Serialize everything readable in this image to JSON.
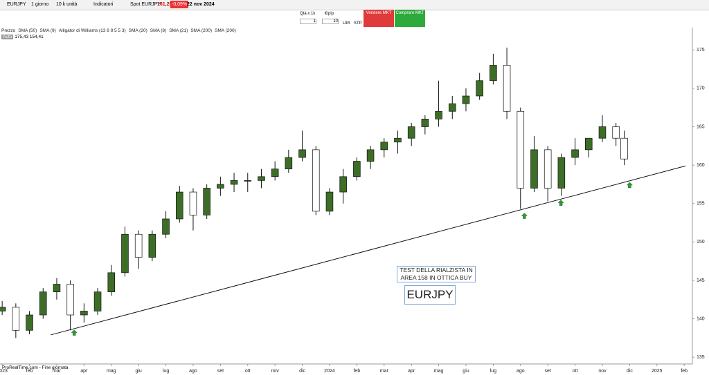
{
  "toolbar": {
    "symbol": "EURJPY",
    "period": "1 giorno",
    "size": "10 k unità",
    "indicators": "Indicatori",
    "spot": "Spot EURJPY",
    "price": "161,25",
    "change": "-0,09%",
    "date": "22 nov 2024"
  },
  "trade_panel": {
    "qty_label": "Qtà x 1k",
    "qty": "1",
    "pip_label": "€/pip",
    "pip": "10",
    "lim": "LIM",
    "stp": "STP",
    "sell": "Vendere MKT",
    "buy": "Comprare MKT"
  },
  "legend": [
    "Prezzo",
    "SMA (50)",
    "SMA (9)",
    "Alligator di Williams (13 8 8 5 5 3)",
    "SMA (20)",
    "SMA (8)",
    "SMA (21)",
    "SMA (200)",
    "SMA (200)"
  ],
  "scale_info": {
    "mode": "Auto",
    "high": "175,43",
    "low": "154,41"
  },
  "footer": "ProRealTime.com - Fine giornata",
  "chart_data": {
    "type": "candlestick",
    "x": [
      0,
      0.5,
      1,
      1.5,
      2,
      2.5,
      3,
      3.5,
      4,
      4.5,
      5,
      5.5,
      6,
      6.5,
      7,
      7.5,
      8,
      8.5,
      9,
      9.5,
      10,
      10.5,
      11,
      11.5,
      12,
      12.5,
      13,
      13.5,
      14,
      14.5,
      15,
      15.5,
      16,
      16.5,
      17,
      17.5,
      18,
      18.5,
      19,
      19.5,
      20,
      20.5,
      21,
      21.5,
      22,
      22.5,
      22.8
    ],
    "open": [
      141,
      141.5,
      138.5,
      140.5,
      143.5,
      144.5,
      140.5,
      141,
      143.5,
      146,
      151,
      148,
      151,
      153,
      156.5,
      153.5,
      157,
      157.5,
      158,
      158,
      158.5,
      159.5,
      161,
      162,
      154,
      156.5,
      158.5,
      160.5,
      162,
      163,
      163.5,
      165,
      166,
      167,
      168,
      169,
      171,
      173,
      167,
      157,
      162,
      157,
      161,
      162,
      163.5,
      165,
      163.5
    ],
    "high": [
      142.3,
      142,
      141,
      144,
      145.3,
      145,
      142,
      144,
      147,
      152,
      151.5,
      151.5,
      154,
      157.3,
      157,
      157.5,
      158.5,
      159,
      159,
      159.5,
      160.5,
      162,
      164.5,
      162.5,
      157,
      159.5,
      161,
      162.5,
      163.5,
      164.5,
      165.5,
      166.5,
      171,
      169,
      170,
      172,
      174.5,
      175.3,
      167.5,
      163.8,
      162.5,
      161.5,
      163.5,
      163.5,
      166.5,
      165.5,
      164.5
    ],
    "low": [
      140.5,
      137.5,
      138,
      140,
      142.5,
      138.5,
      139.5,
      140.5,
      143,
      145.5,
      146.5,
      147.5,
      150.5,
      152.5,
      151.5,
      153,
      156,
      156.5,
      156.5,
      157,
      158,
      159,
      160.5,
      153.5,
      153.5,
      155,
      158,
      159.5,
      161,
      161.5,
      162.5,
      164,
      165,
      166,
      167,
      168.5,
      170.5,
      166,
      154.3,
      156.5,
      155.3,
      156,
      160,
      161,
      163,
      162.5,
      160
    ],
    "close": [
      141.5,
      138.5,
      140.5,
      143.5,
      144.5,
      140.5,
      141,
      143.5,
      146,
      151,
      148,
      151,
      153,
      156.5,
      153.5,
      157,
      157.5,
      158,
      158,
      158.5,
      159.5,
      161,
      162,
      154,
      156.5,
      158.5,
      160.5,
      162,
      163,
      163.5,
      165,
      166,
      167,
      168,
      169,
      171,
      173,
      167,
      157,
      162,
      157,
      161,
      162,
      163.5,
      165,
      163.5,
      160.8
    ],
    "up_color": "#3d6e27",
    "down_color": "#ffffff",
    "xlim": [
      -0.08,
      25.3
    ],
    "xticks": [
      {
        "value": 0,
        "label": "2023"
      },
      {
        "value": 1,
        "label": "feb"
      },
      {
        "value": 2,
        "label": "mar"
      },
      {
        "value": 3,
        "label": "apr"
      },
      {
        "value": 4,
        "label": "mag"
      },
      {
        "value": 5,
        "label": "giu"
      },
      {
        "value": 6,
        "label": "lug"
      },
      {
        "value": 7,
        "label": "ago"
      },
      {
        "value": 8,
        "label": "set"
      },
      {
        "value": 9,
        "label": "ott"
      },
      {
        "value": 10,
        "label": "nov"
      },
      {
        "value": 11,
        "label": "dic"
      },
      {
        "value": 12,
        "label": "2024"
      },
      {
        "value": 13,
        "label": "feb"
      },
      {
        "value": 14,
        "label": "mar"
      },
      {
        "value": 15,
        "label": "apr"
      },
      {
        "value": 16,
        "label": "mag"
      },
      {
        "value": 17,
        "label": "giu"
      },
      {
        "value": 18,
        "label": "lug"
      },
      {
        "value": 19,
        "label": "ago"
      },
      {
        "value": 20,
        "label": "set"
      },
      {
        "value": 21,
        "label": "ott"
      },
      {
        "value": 22,
        "label": "nov"
      },
      {
        "value": 23,
        "label": "dic"
      },
      {
        "value": 24,
        "label": "2025"
      },
      {
        "value": 25,
        "label": "feb"
      }
    ],
    "ylim": [
      134.3,
      177.9
    ],
    "yticks": [
      135,
      140,
      145,
      150,
      155,
      160,
      165,
      170,
      175
    ],
    "trendline": {
      "x": [
        1.78,
        25.05
      ],
      "y": [
        137.9,
        159.9
      ]
    },
    "markers": {
      "x": [
        2.64,
        19.14,
        20.48,
        23.0
      ],
      "y": [
        138.2,
        153.4,
        155.1,
        157.4
      ]
    },
    "annotations": [
      "TEST DELLA RIALZISTA IN AREA 158 IN OTTICA BUY",
      "EURJPY"
    ]
  }
}
